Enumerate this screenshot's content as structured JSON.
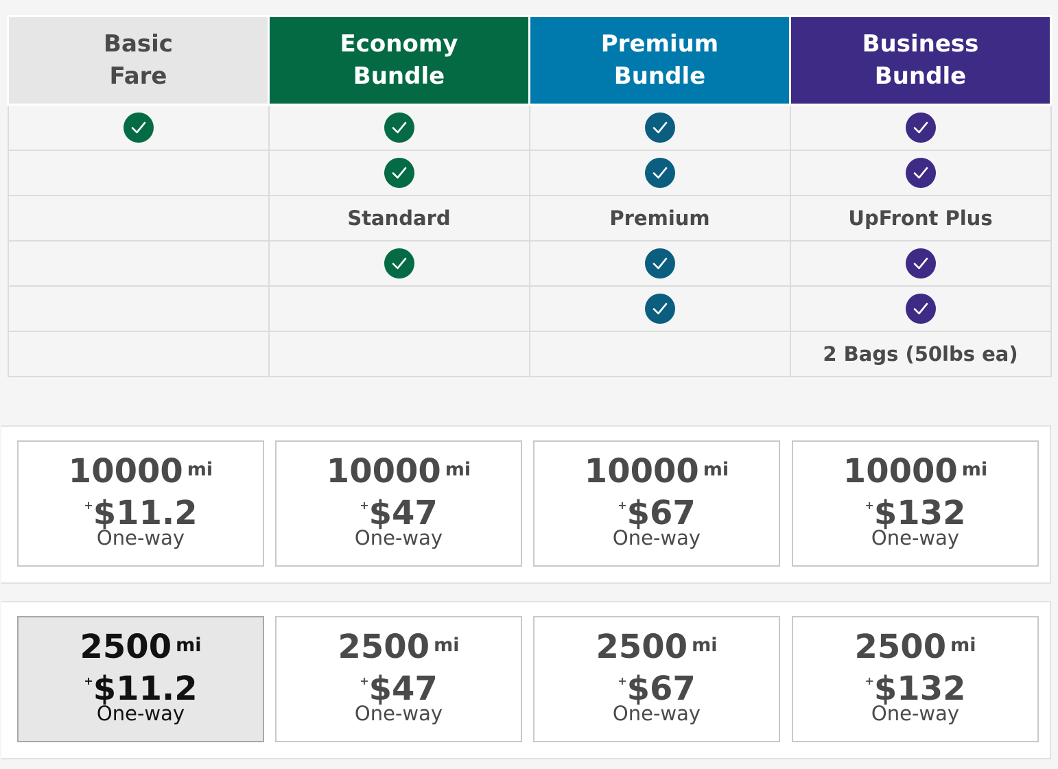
{
  "bundles": [
    {
      "name_line1": "Basic",
      "name_line2": "Fare"
    },
    {
      "name_line1": "Economy",
      "name_line2": "Bundle"
    },
    {
      "name_line1": "Premium",
      "name_line2": "Bundle"
    },
    {
      "name_line1": "Business",
      "name_line2": "Bundle"
    }
  ],
  "features": [
    {
      "cells": [
        "check",
        "check",
        "check",
        "check"
      ]
    },
    {
      "cells": [
        "",
        "check",
        "check",
        "check"
      ]
    },
    {
      "cells": [
        "",
        "Standard",
        "Premium",
        "UpFront Plus"
      ]
    },
    {
      "cells": [
        "",
        "check",
        "check",
        "check"
      ]
    },
    {
      "cells": [
        "",
        "",
        "check",
        "check"
      ]
    },
    {
      "cells": [
        "",
        "",
        "",
        "2 Bags (50lbs ea)"
      ]
    }
  ],
  "colors": {
    "basic": "#046b45",
    "economy": "#036a44",
    "premium": "#007aad",
    "premium_check": "#0b5e80",
    "business": "#3d2b85"
  },
  "price_rows": [
    {
      "options": [
        {
          "miles": "10000",
          "unit": "mi",
          "plus": "+",
          "cash": "$11.2",
          "trip": "One-way",
          "selected": false
        },
        {
          "miles": "10000",
          "unit": "mi",
          "plus": "+",
          "cash": "$47",
          "trip": "One-way",
          "selected": false
        },
        {
          "miles": "10000",
          "unit": "mi",
          "plus": "+",
          "cash": "$67",
          "trip": "One-way",
          "selected": false
        },
        {
          "miles": "10000",
          "unit": "mi",
          "plus": "+",
          "cash": "$132",
          "trip": "One-way",
          "selected": false
        }
      ]
    },
    {
      "options": [
        {
          "miles": "2500",
          "unit": "mi",
          "plus": "+",
          "cash": "$11.2",
          "trip": "One-way",
          "selected": true
        },
        {
          "miles": "2500",
          "unit": "mi",
          "plus": "+",
          "cash": "$47",
          "trip": "One-way",
          "selected": false
        },
        {
          "miles": "2500",
          "unit": "mi",
          "plus": "+",
          "cash": "$67",
          "trip": "One-way",
          "selected": false
        },
        {
          "miles": "2500",
          "unit": "mi",
          "plus": "+",
          "cash": "$132",
          "trip": "One-way",
          "selected": false
        }
      ]
    }
  ]
}
